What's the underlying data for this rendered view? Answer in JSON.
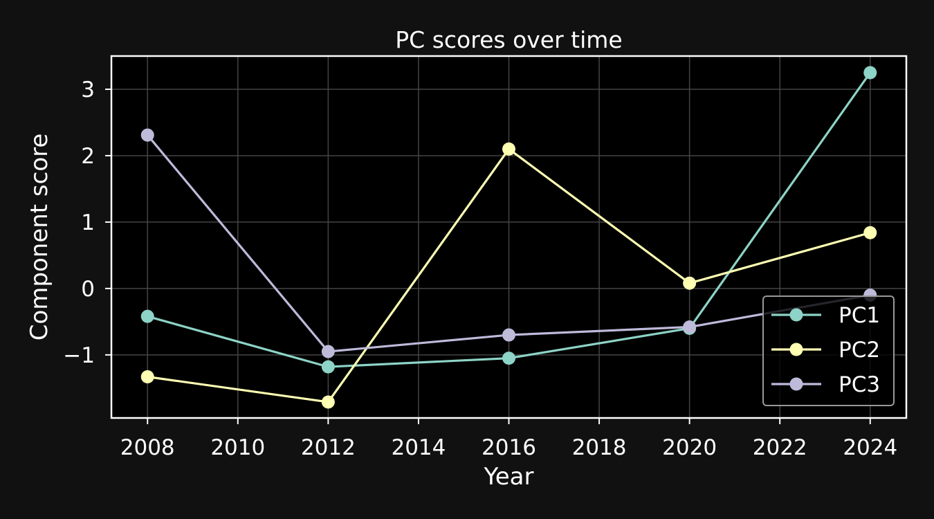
{
  "chart_data": {
    "type": "line",
    "title": "PC scores over time",
    "xlabel": "Year",
    "ylabel": "Component score",
    "x": [
      2008,
      2012,
      2016,
      2020,
      2024
    ],
    "xlim": [
      2007.2,
      2024.8
    ],
    "ylim": [
      -1.95,
      3.5
    ],
    "xticks": [
      2008,
      2010,
      2012,
      2014,
      2016,
      2018,
      2020,
      2022,
      2024
    ],
    "yticks": [
      -1,
      0,
      1,
      2,
      3
    ],
    "ytick_labels": [
      "−1",
      "0",
      "1",
      "2",
      "3"
    ],
    "grid": true,
    "legend_position": "lower-right",
    "series": [
      {
        "name": "PC1",
        "color": "#8dd3c7",
        "values": [
          -0.42,
          -1.18,
          -1.05,
          -0.6,
          3.25
        ]
      },
      {
        "name": "PC2",
        "color": "#ffffb3",
        "values": [
          -1.33,
          -1.71,
          2.1,
          0.08,
          0.84
        ]
      },
      {
        "name": "PC3",
        "color": "#bebada",
        "values": [
          2.31,
          -0.95,
          -0.7,
          -0.58,
          -0.1
        ]
      }
    ]
  },
  "colors": {
    "page_background": "#111111",
    "plot_background": "#000000",
    "axis": "#ffffff",
    "grid": "#444444",
    "text": "#ffffff"
  }
}
